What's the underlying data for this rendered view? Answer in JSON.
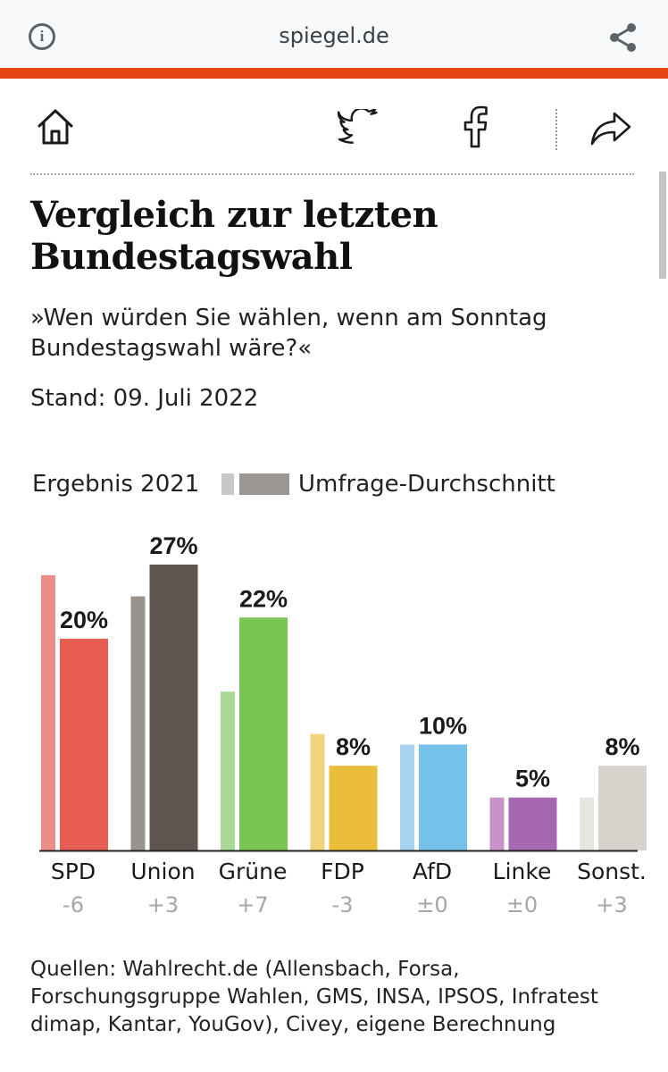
{
  "browser": {
    "url": "spiegel.de",
    "info_icon": "info-icon",
    "share_icon": "share-icon"
  },
  "toolbar": {
    "icons": [
      "home-icon",
      "twitter-icon",
      "facebook-icon",
      "share-arrow-icon"
    ]
  },
  "article": {
    "title": "Vergleich zur letzten Bundestagswahl",
    "question": "»Wen würden Sie wählen, wenn am Sonntag Bundestagswahl wäre?«",
    "stand": "Stand: 09. Juli 2022",
    "sources": "Quellen: Wahlrecht.de (Allensbach, Forsa, Forschungsgruppe Wahlen, GMS, INSA, IPSOS, Infratest dimap, Kantar, YouGov), Civey, eigene Berechnung"
  },
  "colors": {
    "brand_red": "#e64415",
    "legend_2021": "#c8c8c8",
    "legend_poll": "#9b9893"
  },
  "chart_data": {
    "type": "bar",
    "categories": [
      "SPD",
      "Union",
      "Grüne",
      "FDP",
      "AfD",
      "Linke",
      "Sonst."
    ],
    "series": [
      {
        "name": "Ergebnis 2021",
        "values": [
          26,
          24,
          15,
          11,
          10,
          5,
          5
        ],
        "colors": [
          "#ec8e88",
          "#9a928c",
          "#a9d897",
          "#f1d37c",
          "#a7d3f1",
          "#c793c8",
          "#e6e5e0"
        ]
      },
      {
        "name": "Umfrage-Durchschnitt",
        "values": [
          20,
          27,
          22,
          8,
          10,
          5,
          8
        ],
        "colors": [
          "#e85d52",
          "#60554e",
          "#79c553",
          "#ebbd39",
          "#74c1ea",
          "#a668b0",
          "#d5d3cc"
        ]
      }
    ],
    "data_labels": [
      "20%",
      "27%",
      "22%",
      "8%",
      "10%",
      "5%",
      "8%"
    ],
    "changes": [
      "-6",
      "+3",
      "+7",
      "-3",
      "±0",
      "±0",
      "+3"
    ],
    "ylim": [
      0,
      27
    ],
    "grid": false,
    "legend_position": "top"
  }
}
